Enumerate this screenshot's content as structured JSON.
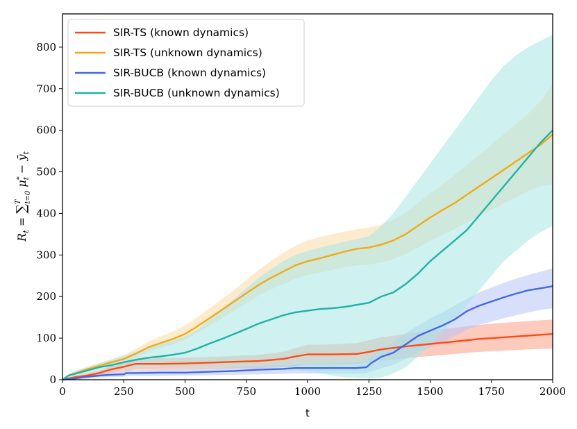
{
  "chart_data": {
    "type": "line",
    "title": "",
    "xlabel": "t",
    "ylabel": "R_t = ∑_{t=0}^{T} μ*_t − ȳ_t",
    "ylabel_parts": {
      "R": "R",
      "sub_t1": "t",
      "eq": " = ",
      "sum": "∑",
      "sum_upper": "T",
      "sum_lower": "t=0",
      "mu": " μ",
      "mu_sup": "*",
      "mu_sub": "t",
      "minus": " − ",
      "y": "ȳ",
      "y_sub": "t"
    },
    "xlim": [
      0,
      2000
    ],
    "ylim": [
      0,
      880
    ],
    "xticks": [
      0,
      250,
      500,
      750,
      1000,
      1250,
      1500,
      1750,
      2000
    ],
    "xtick_labels": [
      "0",
      "250",
      "500",
      "750",
      "1000",
      "1250",
      "1500",
      "1750",
      "2000"
    ],
    "yticks": [
      0,
      100,
      200,
      300,
      400,
      500,
      600,
      700,
      800
    ],
    "ytick_labels": [
      "0",
      "100",
      "200",
      "300",
      "400",
      "500",
      "600",
      "700",
      "800"
    ],
    "grid": false,
    "legend_position": "top-left",
    "series": [
      {
        "name": "SIR-TS (known dynamics)",
        "color": "#ff4b12",
        "band_color": "#fb9f88",
        "x": [
          0,
          25,
          50,
          100,
          150,
          200,
          250,
          275,
          300,
          350,
          400,
          500,
          600,
          700,
          800,
          900,
          950,
          1000,
          1100,
          1200,
          1250,
          1300,
          1400,
          1500,
          1600,
          1700,
          1800,
          1900,
          2000
        ],
        "y": [
          0,
          3,
          6,
          10,
          16,
          25,
          31,
          35,
          38,
          38,
          38,
          39,
          41,
          43,
          45,
          50,
          56,
          61,
          61,
          62,
          67,
          73,
          80,
          86,
          92,
          98,
          102,
          106,
          110
        ],
        "lower": [
          0,
          1,
          3,
          6,
          10,
          16,
          20,
          22,
          24,
          24,
          24,
          25,
          26,
          27,
          28,
          30,
          33,
          36,
          36,
          38,
          41,
          45,
          52,
          57,
          62,
          67,
          70,
          73,
          75
        ],
        "upper": [
          0,
          6,
          10,
          15,
          22,
          34,
          42,
          47,
          52,
          52,
          52,
          53,
          55,
          57,
          60,
          67,
          76,
          84,
          85,
          88,
          95,
          102,
          110,
          118,
          125,
          132,
          137,
          141,
          145
        ]
      },
      {
        "name": "SIR-TS (unknown dynamics)",
        "color": "#f5a816",
        "band_color": "#fcdba9",
        "x": [
          0,
          25,
          50,
          100,
          150,
          200,
          250,
          300,
          350,
          400,
          450,
          500,
          550,
          600,
          650,
          700,
          750,
          800,
          850,
          900,
          950,
          1000,
          1050,
          1100,
          1150,
          1200,
          1250,
          1300,
          1350,
          1400,
          1450,
          1500,
          1550,
          1600,
          1650,
          1700,
          1750,
          1800,
          1850,
          1900,
          1950,
          2000
        ],
        "y": [
          0,
          10,
          15,
          25,
          33,
          42,
          50,
          63,
          78,
          88,
          98,
          110,
          128,
          148,
          168,
          188,
          208,
          228,
          245,
          260,
          275,
          285,
          292,
          300,
          308,
          315,
          318,
          325,
          335,
          350,
          370,
          390,
          408,
          425,
          445,
          465,
          485,
          505,
          525,
          545,
          565,
          590
        ],
        "lower": [
          0,
          8,
          12,
          20,
          27,
          35,
          42,
          54,
          67,
          76,
          85,
          96,
          112,
          130,
          148,
          166,
          184,
          202,
          217,
          230,
          243,
          252,
          258,
          264,
          270,
          275,
          277,
          282,
          290,
          302,
          318,
          334,
          348,
          362,
          378,
          394,
          409,
          424,
          439,
          454,
          465,
          470
        ],
        "upper": [
          0,
          14,
          20,
          32,
          40,
          50,
          60,
          75,
          92,
          104,
          116,
          130,
          150,
          172,
          194,
          216,
          240,
          264,
          285,
          305,
          322,
          335,
          343,
          350,
          356,
          362,
          366,
          373,
          385,
          402,
          425,
          448,
          470,
          492,
          516,
          540,
          565,
          590,
          615,
          640,
          670,
          710
        ]
      },
      {
        "name": "SIR-BUCB (known dynamics)",
        "color": "#4169e1",
        "band_color": "#b7c5f5",
        "x": [
          0,
          50,
          100,
          150,
          200,
          250,
          260,
          300,
          400,
          500,
          600,
          700,
          800,
          900,
          950,
          1000,
          1100,
          1200,
          1240,
          1260,
          1300,
          1350,
          1400,
          1450,
          1500,
          1550,
          1600,
          1650,
          1700,
          1750,
          1800,
          1850,
          1900,
          1950,
          2000
        ],
        "y": [
          0,
          3,
          7,
          10,
          12,
          13,
          16,
          16,
          17,
          17,
          19,
          21,
          24,
          26,
          28,
          28,
          28,
          28,
          30,
          40,
          55,
          65,
          85,
          105,
          118,
          130,
          145,
          165,
          178,
          188,
          198,
          207,
          215,
          220,
          225
        ],
        "lower": [
          0,
          1,
          3,
          5,
          6,
          7,
          9,
          9,
          9,
          10,
          11,
          12,
          13,
          14,
          15,
          15,
          15,
          15,
          16,
          20,
          28,
          35,
          50,
          65,
          78,
          90,
          105,
          120,
          132,
          140,
          148,
          155,
          162,
          168,
          172
        ],
        "upper": [
          0,
          5,
          11,
          15,
          18,
          20,
          23,
          23,
          24,
          25,
          27,
          30,
          33,
          36,
          38,
          38,
          40,
          42,
          45,
          58,
          75,
          90,
          112,
          130,
          148,
          162,
          178,
          195,
          210,
          222,
          233,
          243,
          252,
          260,
          268
        ]
      },
      {
        "name": "SIR-BUCB (unknown dynamics)",
        "color": "#20b2a5",
        "band_color": "#a8e6e3",
        "x": [
          0,
          25,
          50,
          100,
          150,
          200,
          250,
          300,
          350,
          400,
          450,
          500,
          550,
          600,
          650,
          700,
          750,
          800,
          850,
          900,
          950,
          1000,
          1050,
          1100,
          1150,
          1200,
          1250,
          1300,
          1350,
          1400,
          1450,
          1500,
          1550,
          1600,
          1650,
          1700,
          1750,
          1800,
          1850,
          1900,
          1950,
          2000
        ],
        "y": [
          0,
          10,
          14,
          22,
          30,
          35,
          42,
          48,
          53,
          56,
          60,
          65,
          75,
          87,
          98,
          110,
          122,
          135,
          145,
          155,
          162,
          166,
          170,
          172,
          175,
          180,
          185,
          200,
          210,
          230,
          255,
          285,
          310,
          335,
          360,
          395,
          430,
          465,
          500,
          535,
          570,
          600
        ],
        "lower": [
          0,
          6,
          9,
          15,
          20,
          23,
          26,
          28,
          30,
          30,
          30,
          30,
          30,
          30,
          30,
          30,
          30,
          30,
          30,
          30,
          25,
          20,
          15,
          10,
          6,
          4,
          3,
          5,
          15,
          30,
          55,
          85,
          115,
          145,
          180,
          215,
          250,
          285,
          310,
          335,
          355,
          370
        ],
        "upper": [
          0,
          14,
          20,
          29,
          40,
          48,
          58,
          68,
          78,
          86,
          95,
          105,
          120,
          145,
          170,
          195,
          220,
          245,
          265,
          285,
          300,
          310,
          318,
          325,
          332,
          338,
          345,
          370,
          400,
          440,
          480,
          520,
          560,
          600,
          640,
          680,
          720,
          755,
          780,
          800,
          815,
          830
        ]
      }
    ]
  }
}
